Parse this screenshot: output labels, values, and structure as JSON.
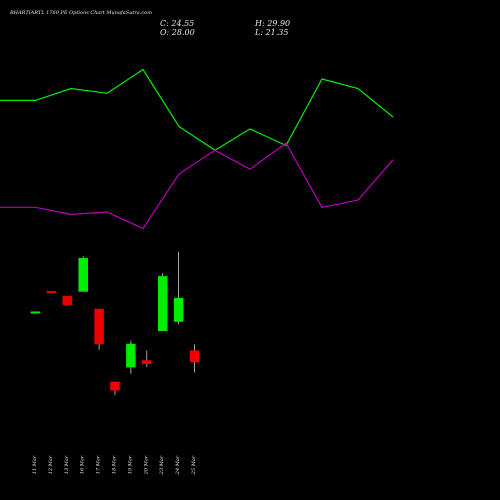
{
  "chart_data": {
    "type": "candlestick",
    "title": "BHARTIARTL 1760 PE Options  Chart MunafaSutra.com",
    "ohlc_text": {
      "close": "C: 24.55",
      "open": "O: 28.00",
      "high": "H: 29.90",
      "low": "L: 21.35"
    },
    "categories": [
      "11 Mar",
      "12 Mar",
      "13 Mar",
      "16 Mar",
      "17 Mar",
      "18 Mar",
      "19 Mar",
      "20 Mar",
      "23 Mar",
      "24 Mar",
      "25 Mar"
    ],
    "candles": [
      {
        "open": 39.8,
        "high": 39.8,
        "low": 39.8,
        "close": 39.8
      },
      {
        "open": 46.0,
        "high": 46.0,
        "low": 45.5,
        "close": 45.5
      },
      {
        "open": 44.5,
        "high": 44.5,
        "low": 41.8,
        "close": 41.8
      },
      {
        "open": 45.9,
        "high": 56.6,
        "low": 45.9,
        "close": 56.0
      },
      {
        "open": 40.6,
        "high": 40.6,
        "low": 28.2,
        "close": 30.0
      },
      {
        "open": 18.5,
        "high": 18.5,
        "low": 14.5,
        "close": 16.0
      },
      {
        "open": 23.0,
        "high": 31.0,
        "low": 21.0,
        "close": 30.0
      },
      {
        "open": 25.0,
        "high": 28.0,
        "low": 23.0,
        "close": 24.0
      },
      {
        "open": 34.0,
        "high": 51.5,
        "low": 34.0,
        "close": 50.5
      },
      {
        "open": 36.8,
        "high": 58.0,
        "low": 36.0,
        "close": 43.9
      },
      {
        "open": 28.0,
        "high": 29.9,
        "low": 21.35,
        "close": 24.55
      }
    ],
    "upper_line": {
      "color": "#00ee00",
      "values": [
        83,
        83,
        88,
        86,
        96,
        72,
        62,
        71,
        64,
        92,
        88,
        76
      ]
    },
    "lower_line": {
      "color": "#bb00bb",
      "values": [
        38,
        38,
        35,
        36,
        29,
        52,
        62,
        54,
        65,
        38,
        41,
        58
      ]
    },
    "colors": {
      "up": "#00ee00",
      "down": "#ee0000",
      "background": "#000000",
      "text": "#e8e8e8"
    }
  }
}
